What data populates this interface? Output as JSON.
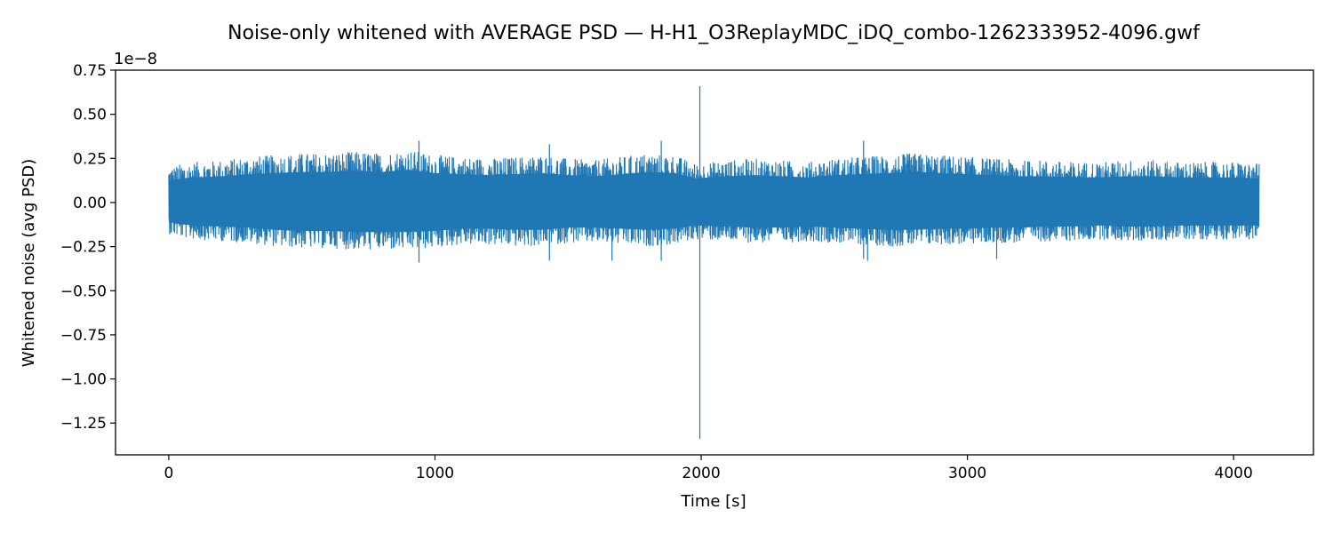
{
  "chart_data": {
    "type": "line",
    "title": "Noise-only whitened with AVERAGE PSD — H-H1_O3ReplayMDC_iDQ_combo-1262333952-4096.gwf",
    "xlabel": "Time [s]",
    "ylabel": "Whitened noise (avg PSD)",
    "y_offset_text": "1e−8",
    "y_scale_factor": 1e-08,
    "xlim": [
      -200,
      4300
    ],
    "ylim": [
      -1.43,
      0.75
    ],
    "x_ticks": [
      {
        "value": 0,
        "label": "0"
      },
      {
        "value": 1000,
        "label": "1000"
      },
      {
        "value": 2000,
        "label": "2000"
      },
      {
        "value": 3000,
        "label": "3000"
      },
      {
        "value": 4000,
        "label": "4000"
      }
    ],
    "y_ticks": [
      {
        "value": 0.75,
        "label": "0.75"
      },
      {
        "value": 0.5,
        "label": "0.50"
      },
      {
        "value": 0.25,
        "label": "0.25"
      },
      {
        "value": 0.0,
        "label": "0.00"
      },
      {
        "value": -0.25,
        "label": "−0.25"
      },
      {
        "value": -0.5,
        "label": "−0.50"
      },
      {
        "value": -0.75,
        "label": "−0.75"
      },
      {
        "value": -1.0,
        "label": "−1.00"
      },
      {
        "value": -1.25,
        "label": "−1.25"
      }
    ],
    "grid": false,
    "legend": "none",
    "series": [
      {
        "color": "#1f77b4",
        "x_range": [
          0,
          4096
        ],
        "envelope_x": [
          0,
          50,
          100,
          200,
          300,
          400,
          500,
          600,
          700,
          800,
          900,
          1000,
          1100,
          1200,
          1300,
          1400,
          1500,
          1600,
          1700,
          1800,
          1900,
          1980,
          2100,
          2200,
          2300,
          2400,
          2500,
          2600,
          2700,
          2800,
          2900,
          3000,
          3100,
          3200,
          3300,
          3400,
          3500,
          3600,
          3700,
          3800,
          3900,
          4000,
          4096
        ],
        "envelope_max": [
          0.2,
          0.22,
          0.23,
          0.24,
          0.26,
          0.27,
          0.28,
          0.28,
          0.29,
          0.28,
          0.3,
          0.27,
          0.26,
          0.25,
          0.26,
          0.27,
          0.25,
          0.24,
          0.26,
          0.28,
          0.27,
          0.22,
          0.24,
          0.25,
          0.24,
          0.23,
          0.25,
          0.26,
          0.27,
          0.28,
          0.27,
          0.26,
          0.25,
          0.24,
          0.24,
          0.23,
          0.23,
          0.24,
          0.24,
          0.23,
          0.23,
          0.23,
          0.22
        ],
        "envelope_min": [
          -0.18,
          -0.2,
          -0.21,
          -0.22,
          -0.23,
          -0.25,
          -0.26,
          -0.26,
          -0.27,
          -0.27,
          -0.27,
          -0.26,
          -0.24,
          -0.24,
          -0.25,
          -0.25,
          -0.23,
          -0.23,
          -0.24,
          -0.25,
          -0.24,
          -0.21,
          -0.22,
          -0.23,
          -0.23,
          -0.22,
          -0.23,
          -0.24,
          -0.25,
          -0.25,
          -0.24,
          -0.24,
          -0.23,
          -0.23,
          -0.22,
          -0.22,
          -0.21,
          -0.22,
          -0.22,
          -0.21,
          -0.21,
          -0.21,
          -0.21
        ],
        "peaks": [
          {
            "x": 940,
            "y": 0.35
          },
          {
            "x": 940,
            "y": -0.34
          },
          {
            "x": 1430,
            "y": 0.33
          },
          {
            "x": 1430,
            "y": -0.33
          },
          {
            "x": 1665,
            "y": -0.33
          },
          {
            "x": 1850,
            "y": 0.35
          },
          {
            "x": 1850,
            "y": -0.33
          },
          {
            "x": 1995,
            "y": 0.66
          },
          {
            "x": 1995,
            "y": -1.34
          },
          {
            "x": 2610,
            "y": 0.35
          },
          {
            "x": 2610,
            "y": -0.32
          },
          {
            "x": 2625,
            "y": -0.33
          },
          {
            "x": 3110,
            "y": -0.32
          }
        ]
      }
    ]
  }
}
